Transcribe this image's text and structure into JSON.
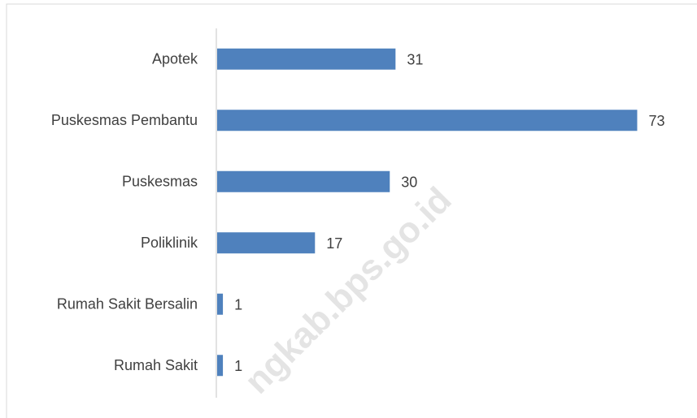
{
  "chart_data": {
    "type": "barh",
    "categories": [
      "Apotek",
      "Puskesmas Pembantu",
      "Puskesmas",
      "Poliklinik",
      "Rumah Sakit Bersalin",
      "Rumah Sakit"
    ],
    "values": [
      31,
      73,
      30,
      17,
      1,
      1
    ],
    "color": "#4f81bd",
    "xlim": [
      0,
      80
    ],
    "watermark": "ngkab.bps.go.id"
  }
}
